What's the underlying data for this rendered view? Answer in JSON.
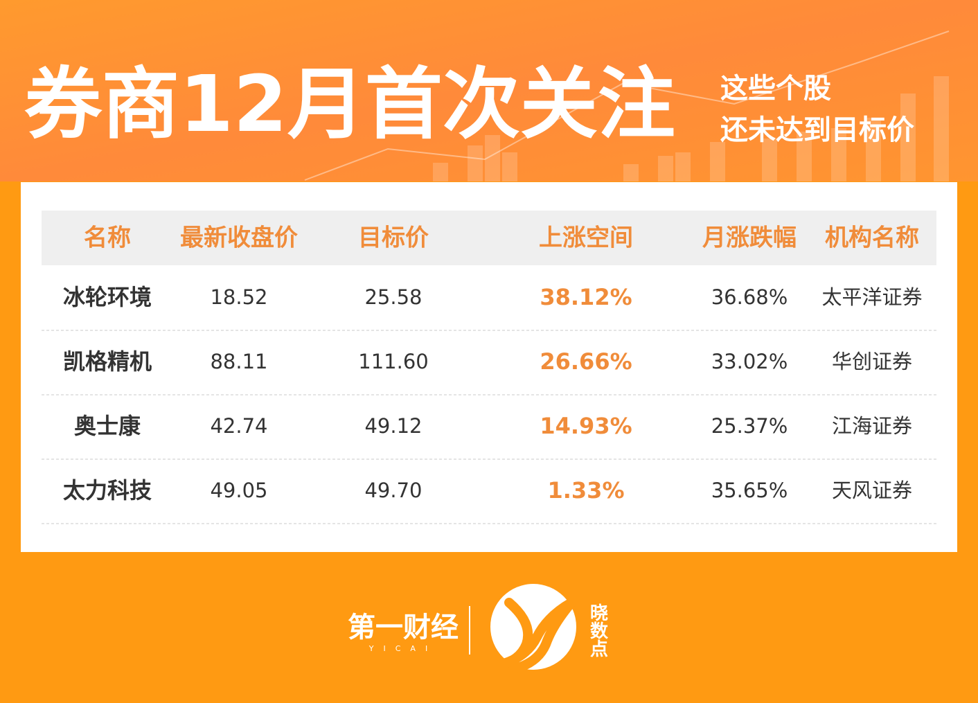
{
  "header": {
    "title": "券商12月首次关注",
    "subtitle": [
      "这些个股",
      "还未达到目标价"
    ]
  },
  "table": {
    "columns": [
      "名称",
      "最新收盘价",
      "目标价",
      "上涨空间",
      "月涨跌幅",
      "机构名称"
    ],
    "rows": [
      [
        "冰轮环境",
        "18.52",
        "25.58",
        "38.12%",
        "36.68%",
        "太平洋证券"
      ],
      [
        "凯格精机",
        "88.11",
        "111.60",
        "26.66%",
        "33.02%",
        "华创证券"
      ],
      [
        "奥士康",
        "42.74",
        "49.12",
        "14.93%",
        "25.37%",
        "江海证券"
      ],
      [
        "太力科技",
        "49.05",
        "49.70",
        "1.33%",
        "35.65%",
        "天风证券"
      ]
    ]
  },
  "footer": {
    "brand": "第一财经",
    "brand_en": "YICAI",
    "product": "晓数点"
  }
}
